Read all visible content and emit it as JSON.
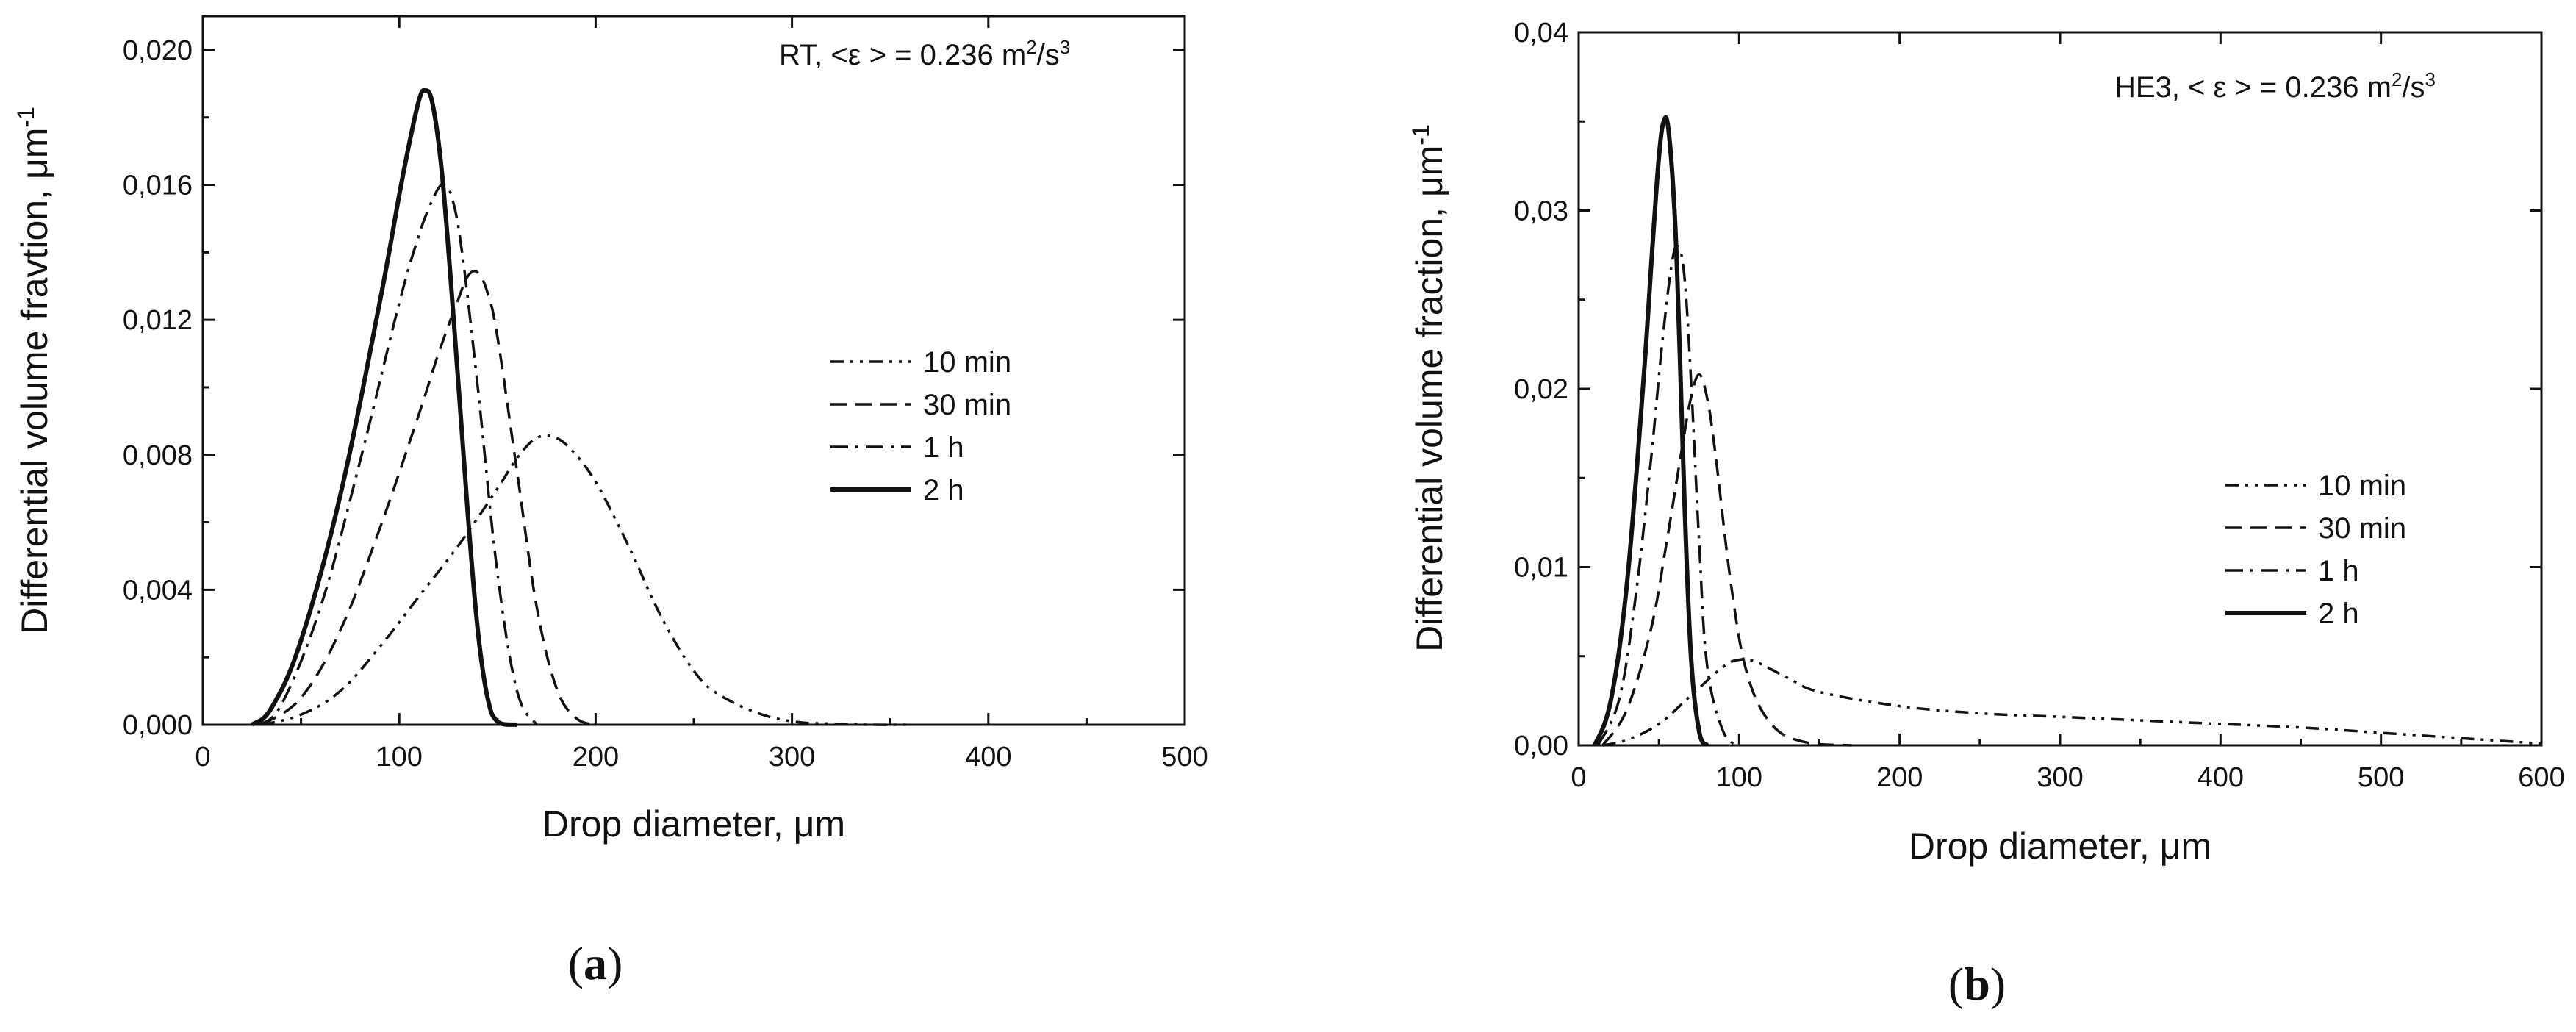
{
  "chart_data": [
    {
      "type": "line",
      "panel_label": {
        "open": "(",
        "letter": "a",
        "close": ")"
      },
      "annotation": {
        "main": "RT, <ε > = 0.236 m",
        "sup1": "2",
        "mid": "/s",
        "sup2": "3"
      },
      "xlabel": "Drop diameter, μm",
      "ylabel": {
        "main": "Differential volume fravtion, μm",
        "sup": "-1"
      },
      "xlim": [
        0,
        500
      ],
      "ylim": [
        0,
        0.021
      ],
      "xticks": [
        0,
        100,
        200,
        300,
        400,
        500
      ],
      "xtick_labels": [
        "0",
        "100",
        "200",
        "300",
        "400",
        "500"
      ],
      "yticks": [
        0,
        0.004,
        0.008,
        0.012,
        0.016,
        0.02
      ],
      "ytick_labels": [
        "0,000",
        "0,004",
        "0,008",
        "0,012",
        "0,016",
        "0,020"
      ],
      "grid": false,
      "legend_position": "right-middle",
      "series": [
        {
          "name": "10 min",
          "style": "dash-dot-dot",
          "x": [
            30,
            50,
            70,
            90,
            110,
            130,
            150,
            160,
            170,
            180,
            190,
            200,
            210,
            220,
            230,
            240,
            250,
            260,
            280,
            300,
            320,
            340,
            360
          ],
          "y": [
            0,
            0.0003,
            0.001,
            0.0023,
            0.0038,
            0.0053,
            0.007,
            0.0079,
            0.0085,
            0.0085,
            0.008,
            0.0072,
            0.0061,
            0.0049,
            0.0036,
            0.0025,
            0.0016,
            0.001,
            0.0004,
            0.0001,
            3e-05,
            0,
            0
          ]
        },
        {
          "name": "30 min",
          "style": "dashed",
          "x": [
            30,
            50,
            70,
            90,
            110,
            120,
            130,
            135,
            140,
            145,
            150,
            160,
            170,
            180,
            190,
            200
          ],
          "y": [
            0,
            0.0008,
            0.0028,
            0.0058,
            0.0092,
            0.011,
            0.0126,
            0.0133,
            0.0134,
            0.0128,
            0.0115,
            0.0075,
            0.0035,
            0.0011,
            0.0002,
            0
          ]
        },
        {
          "name": "1 h",
          "style": "dash-dot",
          "x": [
            28,
            40,
            60,
            80,
            100,
            110,
            115,
            120,
            123,
            127,
            132,
            140,
            150,
            160,
            170
          ],
          "y": [
            0,
            0.0006,
            0.0035,
            0.0078,
            0.0125,
            0.0145,
            0.0153,
            0.0159,
            0.016,
            0.0156,
            0.014,
            0.01,
            0.0045,
            0.001,
            0
          ]
        },
        {
          "name": "2 h",
          "style": "solid",
          "x": [
            25,
            35,
            50,
            70,
            90,
            100,
            105,
            110,
            113,
            117,
            122,
            128,
            135,
            140,
            145,
            150,
            160
          ],
          "y": [
            0,
            0.0005,
            0.0025,
            0.0068,
            0.0125,
            0.0157,
            0.0172,
            0.0185,
            0.0188,
            0.0184,
            0.0162,
            0.0118,
            0.0062,
            0.0028,
            0.0008,
            0.0001,
            0
          ]
        }
      ]
    },
    {
      "type": "line",
      "panel_label": {
        "open": "(",
        "letter": "b",
        "close": ")"
      },
      "annotation": {
        "main": "HE3, < ε > = 0.236 m",
        "sup1": "2",
        "mid": "/s",
        "sup2": "3"
      },
      "xlabel": "Drop diameter, μm",
      "ylabel": {
        "main": "Differential volume fraction, μm",
        "sup": "-1"
      },
      "xlim": [
        0,
        600
      ],
      "ylim": [
        0,
        0.04
      ],
      "xticks": [
        0,
        100,
        200,
        300,
        400,
        500,
        600
      ],
      "xtick_labels": [
        "0",
        "100",
        "200",
        "300",
        "400",
        "500",
        "600"
      ],
      "yticks": [
        0,
        0.01,
        0.02,
        0.03,
        0.04
      ],
      "ytick_labels": [
        "0,00",
        "0,01",
        "0,02",
        "0,03",
        "0,04"
      ],
      "grid": false,
      "legend_position": "right-middle",
      "series": [
        {
          "name": "10 min",
          "style": "dash-dot-dot",
          "x": [
            15,
            30,
            50,
            70,
            90,
            100,
            110,
            130,
            150,
            200,
            250,
            300,
            350,
            400,
            450,
            500,
            550,
            600
          ],
          "y": [
            0,
            0.0003,
            0.0012,
            0.0028,
            0.0044,
            0.0048,
            0.0047,
            0.0038,
            0.003,
            0.0022,
            0.0018,
            0.0016,
            0.0014,
            0.0012,
            0.001,
            0.0007,
            0.0004,
            0.0001
          ]
        },
        {
          "name": "30 min",
          "style": "dashed",
          "x": [
            15,
            30,
            45,
            55,
            65,
            70,
            75,
            80,
            85,
            95,
            105,
            120,
            140,
            170
          ],
          "y": [
            0,
            0.002,
            0.0065,
            0.0115,
            0.017,
            0.0195,
            0.0208,
            0.0195,
            0.0165,
            0.009,
            0.004,
            0.0012,
            0.0002,
            0
          ]
        },
        {
          "name": "1 h",
          "style": "dash-dot",
          "x": [
            12,
            25,
            35,
            45,
            52,
            58,
            62,
            66,
            70,
            75,
            80,
            90,
            100
          ],
          "y": [
            0,
            0.0025,
            0.008,
            0.016,
            0.0225,
            0.027,
            0.028,
            0.0262,
            0.0205,
            0.0115,
            0.0045,
            0.0008,
            0
          ]
        },
        {
          "name": "2 h",
          "style": "solid",
          "x": [
            10,
            20,
            30,
            40,
            46,
            50,
            53,
            56,
            60,
            63,
            66,
            70,
            75,
            80
          ],
          "y": [
            0,
            0.0025,
            0.009,
            0.02,
            0.028,
            0.033,
            0.035,
            0.0345,
            0.0295,
            0.022,
            0.0135,
            0.005,
            0.0008,
            0
          ]
        }
      ]
    }
  ]
}
